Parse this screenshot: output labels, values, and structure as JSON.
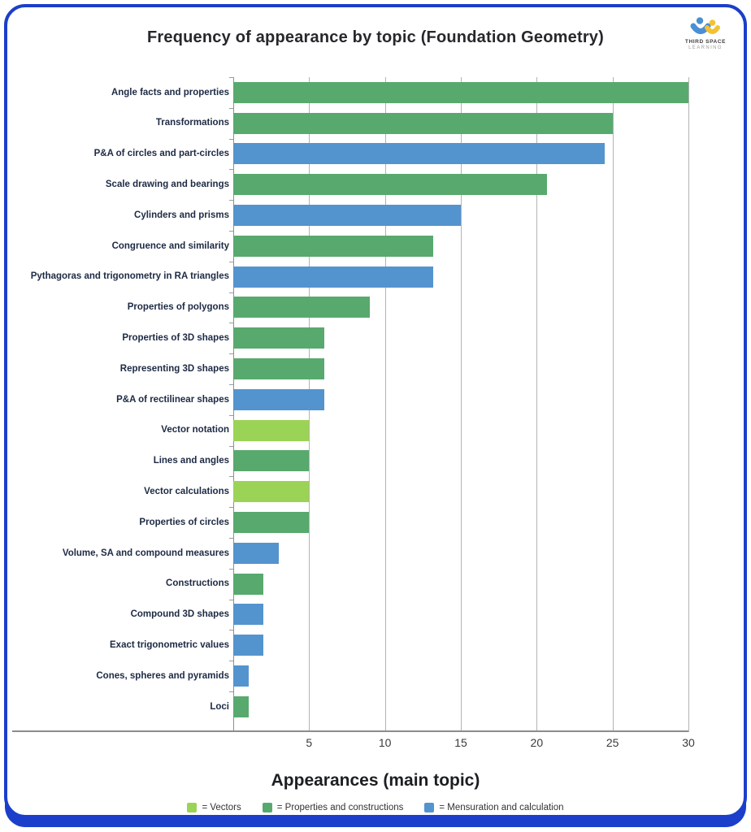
{
  "title": "Frequency of appearance by topic (Foundation Geometry)",
  "logo": {
    "line1": "THIRD SPACE",
    "line2": "LEARNING"
  },
  "xlabel": "Appearances (main topic)",
  "colors": {
    "border_blue": "#1b3fcb",
    "grid": "#b3b3b3",
    "axis": "#8c8c8c",
    "groups": {
      "vectors": "#9bd356",
      "properties": "#58a96e",
      "mensuration": "#5494ce"
    }
  },
  "legend": [
    {
      "label": "= Vectors",
      "group": "vectors"
    },
    {
      "label": "= Properties and constructions",
      "group": "properties"
    },
    {
      "label": "= Mensuration and calculation",
      "group": "mensuration"
    }
  ],
  "chart_data": {
    "type": "bar",
    "orientation": "horizontal",
    "title": "Frequency of appearance by topic (Foundation Geometry)",
    "xlabel": "Appearances (main topic)",
    "xlim": [
      0,
      30
    ],
    "xticks": [
      5,
      10,
      15,
      20,
      25,
      30
    ],
    "grid": true,
    "legend_position": "bottom",
    "categories": [
      "Angle facts and properties",
      "Transformations",
      "P&A of circles and part-circles",
      "Scale drawing and bearings",
      "Cylinders and prisms",
      "Congruence and similarity",
      "Pythagoras and trigonometry in RA triangles",
      "Properties of polygons",
      "Properties of 3D shapes",
      "Representing 3D shapes",
      "P&A of rectilinear shapes",
      "Vector notation",
      "Lines and angles",
      "Vector calculations",
      "Properties of circles",
      "Volume, SA and compound measures",
      "Constructions",
      "Compound 3D shapes",
      "Exact trigonometric values",
      "Cones, spheres and pyramids",
      "Loci"
    ],
    "values": [
      30,
      25,
      24.5,
      20.7,
      15,
      13.2,
      13.2,
      9,
      6,
      6,
      6,
      5,
      5,
      5,
      5,
      3,
      2,
      2,
      2,
      1,
      1
    ],
    "groups": [
      "properties",
      "properties",
      "mensuration",
      "properties",
      "mensuration",
      "properties",
      "mensuration",
      "properties",
      "properties",
      "properties",
      "mensuration",
      "vectors",
      "properties",
      "vectors",
      "properties",
      "mensuration",
      "properties",
      "mensuration",
      "mensuration",
      "mensuration",
      "properties"
    ]
  }
}
